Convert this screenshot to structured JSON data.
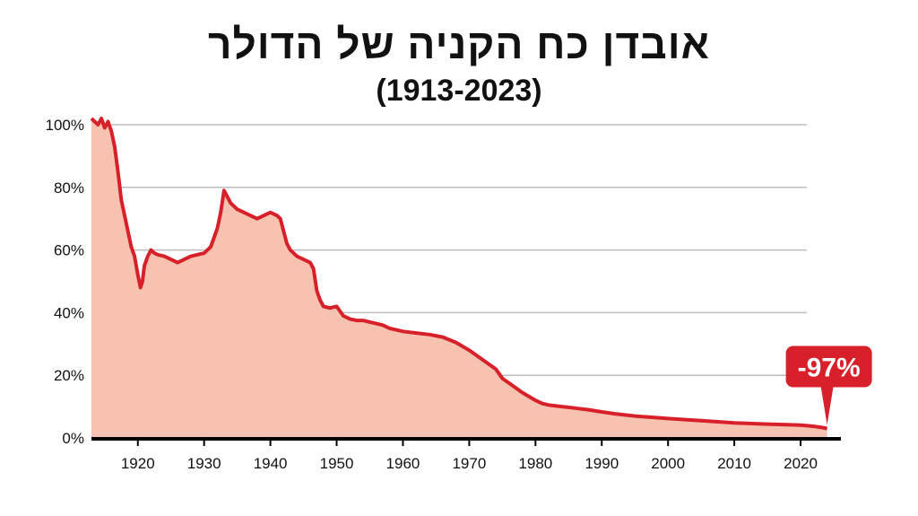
{
  "chart_data": {
    "type": "area",
    "title": "אובדן כח הקניה של הדולר",
    "subtitle": "(1913-2023)",
    "xlabel": "",
    "ylabel": "",
    "xlim": [
      1913,
      2025
    ],
    "ylim": [
      0,
      100
    ],
    "x_ticks": [
      1920,
      1930,
      1940,
      1950,
      1960,
      1970,
      1980,
      1990,
      2000,
      2010,
      2020
    ],
    "x_tick_labels": [
      "1920",
      "1930",
      "1940",
      "1950",
      "1960",
      "1970",
      "1980",
      "1990",
      "2000",
      "2010",
      "2020"
    ],
    "y_ticks": [
      0,
      20,
      40,
      60,
      80,
      100
    ],
    "y_tick_labels": [
      "0%",
      "20%",
      "40%",
      "60%",
      "80%",
      "100%"
    ],
    "grid": "horizontal",
    "series": [
      {
        "x": [
          1913,
          1913.5,
          1914,
          1914.5,
          1915,
          1915.5,
          1916,
          1916.5,
          1917,
          1917.5,
          1918,
          1918.5,
          1919,
          1919.5,
          1920,
          1920.4,
          1920.7,
          1921,
          1921.5,
          1922,
          1922.5,
          1923,
          1924,
          1925,
          1926,
          1927,
          1928,
          1929,
          1930,
          1931,
          1932,
          1932.5,
          1933,
          1933.5,
          1934,
          1935,
          1936,
          1937,
          1938,
          1939,
          1940,
          1941,
          1941.5,
          1942,
          1942.5,
          1943,
          1944,
          1945,
          1946,
          1946.5,
          1947,
          1947.5,
          1948,
          1949,
          1950,
          1951,
          1952,
          1953,
          1954,
          1955,
          1956,
          1957,
          1958,
          1959,
          1960,
          1962,
          1964,
          1966,
          1968,
          1970,
          1972,
          1974,
          1975,
          1976,
          1978,
          1980,
          1981,
          1982,
          1984,
          1986,
          1988,
          1990,
          1992,
          1995,
          2000,
          2005,
          2008,
          2010,
          2015,
          2020,
          2021,
          2022,
          2023,
          2024
        ],
        "values": [
          102,
          101,
          100,
          102,
          99,
          101,
          98,
          93,
          85,
          76,
          71,
          66,
          61,
          58,
          52,
          48,
          50,
          55,
          58,
          60,
          59,
          58.5,
          58,
          57,
          56,
          57,
          58,
          58.5,
          59,
          61,
          67,
          72,
          79,
          77,
          75,
          73,
          72,
          71,
          70,
          71,
          72,
          71,
          70,
          66,
          62,
          60,
          58,
          57,
          56,
          54,
          47,
          44,
          42,
          41.5,
          42,
          39,
          38,
          37.5,
          37.5,
          37,
          36.5,
          36,
          35,
          34.5,
          34,
          33.5,
          33,
          32.2,
          30.5,
          28,
          25,
          22,
          19,
          17.5,
          14.5,
          12,
          11,
          10.5,
          10,
          9.5,
          9,
          8.3,
          7.7,
          7,
          6.2,
          5.5,
          5.1,
          4.8,
          4.4,
          4.1,
          3.9,
          3.7,
          3.4,
          3.0
        ]
      }
    ],
    "annotation": {
      "text": "-97%",
      "x": 2024,
      "y": 3
    },
    "colors": {
      "line": "#d7202a",
      "fill": "#f8c2b0",
      "grid": "#bdbdbd",
      "axis": "#000000",
      "callout": "#d7202a"
    }
  }
}
